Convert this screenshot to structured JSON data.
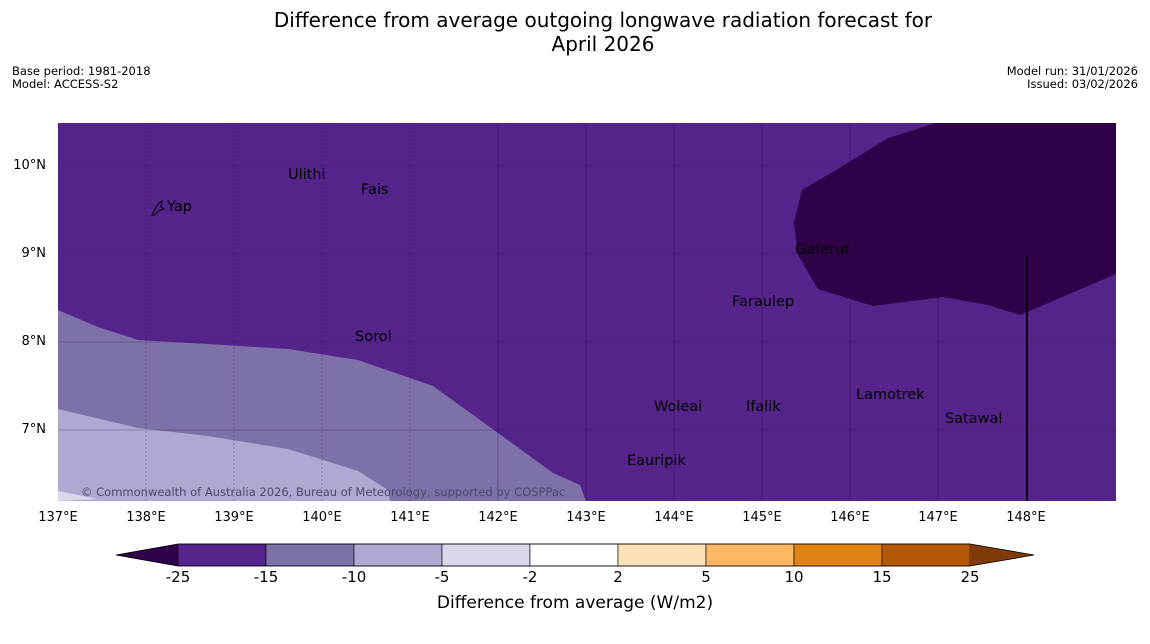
{
  "title": "Difference from average outgoing longwave radiation forecast for April 2026",
  "title_lines": [
    "Difference from average outgoing longwave radiation forecast for",
    "April 2026"
  ],
  "base_period": "Base period: 1981-2018",
  "model": "Model: ACCESS-S2",
  "model_run": "Model run: 31/01/2026",
  "issued": "Issued: 03/02/2026",
  "copyright": "© Commonwealth of Australia 2026, Bureau of Meteorology, supported by COSPPac",
  "lat_labels": [
    "10°N",
    "9°N",
    "8°N",
    "7°N"
  ],
  "lon_labels": [
    "137°E",
    "138°E",
    "139°E",
    "140°E",
    "141°E",
    "142°E",
    "143°E",
    "144°E",
    "145°E",
    "146°E",
    "147°E",
    "148°E"
  ],
  "places": [
    "Ulithi",
    "Fais",
    "Yap",
    "Gaferut",
    "Faraulep",
    "Sorol",
    "Woleai",
    "Ifalik",
    "Lamotrek",
    "Satawal",
    "Eauripik"
  ],
  "colorbar": {
    "ticks": [
      "-25",
      "-15",
      "-10",
      "-5",
      "-2",
      "2",
      "5",
      "10",
      "15",
      "25"
    ],
    "colors": [
      "#2e0149",
      "#55248a",
      "#7e71aa",
      "#b0a8d2",
      "#d8d8ea",
      "#ffffff",
      "#fee0b6",
      "#fdb863",
      "#e08214",
      "#b35806",
      "#7f3b08"
    ],
    "label": "Difference from average (W/m2)"
  },
  "chart_data": {
    "type": "map",
    "region": {
      "lon_range": [
        137,
        149
      ],
      "lat_range": [
        6.2,
        10.5
      ]
    },
    "field": "Difference from average outgoing longwave radiation (W/m2)",
    "levels": [
      -25,
      -15,
      -10,
      -5,
      -2,
      2,
      5,
      10,
      15,
      25
    ],
    "regions_present": [
      {
        "range": "< -25",
        "area": "north-east (Gaferut to east)"
      },
      {
        "range": "-25 to -15",
        "area": "most of domain"
      },
      {
        "range": "-15 to -10",
        "area": "south-west band"
      },
      {
        "range": "-10 to -5",
        "area": "far south-west corner"
      }
    ]
  }
}
